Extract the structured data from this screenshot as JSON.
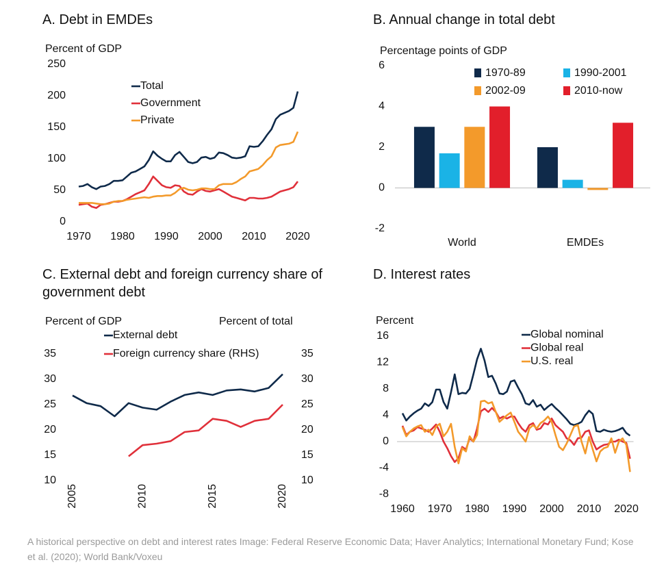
{
  "chart_data": [
    {
      "type": "line",
      "title": "A. Debt in EMDEs",
      "y_label": "Percent of GDP",
      "x": [
        1970,
        1971,
        1972,
        1973,
        1974,
        1975,
        1976,
        1977,
        1978,
        1979,
        1980,
        1981,
        1982,
        1983,
        1984,
        1985,
        1986,
        1987,
        1988,
        1989,
        1990,
        1991,
        1992,
        1993,
        1994,
        1995,
        1996,
        1997,
        1998,
        1999,
        2000,
        2001,
        2002,
        2003,
        2004,
        2005,
        2006,
        2007,
        2008,
        2009,
        2010,
        2011,
        2012,
        2013,
        2014,
        2015,
        2016,
        2017,
        2018,
        2019,
        2020
      ],
      "series": [
        {
          "name": "Total",
          "color": "#0f2a4a",
          "values": [
            56,
            57,
            60,
            55,
            52,
            56,
            57,
            60,
            65,
            65,
            66,
            72,
            78,
            80,
            84,
            88,
            98,
            112,
            105,
            100,
            96,
            96,
            106,
            111,
            103,
            95,
            93,
            95,
            102,
            103,
            100,
            102,
            110,
            109,
            106,
            102,
            101,
            102,
            104,
            120,
            119,
            120,
            128,
            138,
            147,
            163,
            170,
            173,
            176,
            181,
            207
          ]
        },
        {
          "name": "Government",
          "color": "#e0303a",
          "values": [
            27,
            28,
            29,
            24,
            22,
            27,
            28,
            30,
            32,
            32,
            33,
            36,
            40,
            44,
            47,
            50,
            60,
            72,
            65,
            58,
            55,
            54,
            58,
            57,
            48,
            44,
            43,
            48,
            52,
            49,
            48,
            50,
            52,
            48,
            44,
            40,
            38,
            36,
            34,
            38,
            38,
            37,
            37,
            38,
            40,
            44,
            48,
            50,
            52,
            55,
            64
          ]
        },
        {
          "name": "Private",
          "color": "#f39a2b",
          "values": [
            30,
            30,
            30,
            30,
            29,
            28,
            28,
            29,
            32,
            33,
            33,
            35,
            36,
            37,
            38,
            39,
            38,
            40,
            41,
            41,
            42,
            42,
            46,
            52,
            54,
            51,
            50,
            51,
            53,
            53,
            52,
            52,
            58,
            60,
            60,
            60,
            63,
            68,
            72,
            80,
            82,
            84,
            90,
            98,
            104,
            118,
            122,
            123,
            124,
            127,
            143
          ]
        }
      ],
      "xlim": [
        1970,
        2020
      ],
      "xticks": [
        1970,
        1980,
        1990,
        2000,
        2010,
        2020
      ],
      "ylim": [
        0,
        250
      ],
      "yticks": [
        0,
        50,
        100,
        150,
        200,
        250
      ]
    },
    {
      "type": "bar",
      "title": "B. Annual change in total debt",
      "y_label": "Percentage points of GDP",
      "categories": [
        "World",
        "EMDEs"
      ],
      "series": [
        {
          "name": "1970-89",
          "color": "#0f2a4a",
          "values": [
            3,
            2
          ]
        },
        {
          "name": "1990-2001",
          "color": "#1ab3e6",
          "values": [
            1.7,
            0.4
          ]
        },
        {
          "name": "2002-09",
          "color": "#f39a2b",
          "values": [
            3,
            -0.1
          ]
        },
        {
          "name": "2010-now",
          "color": "#e21f2b",
          "values": [
            4,
            3.2
          ]
        }
      ],
      "ylim": [
        -2,
        6
      ],
      "yticks": [
        -2,
        0,
        2,
        4,
        6
      ],
      "zero_line": true
    },
    {
      "type": "line",
      "title": "C. External debt and foreign currency share of government debt",
      "y_label": "Percent of GDP",
      "y2_label": "Percent of total",
      "x": [
        2005,
        2006,
        2007,
        2008,
        2009,
        2010,
        2011,
        2012,
        2013,
        2014,
        2015,
        2016,
        2017,
        2018,
        2019,
        2020
      ],
      "series": [
        {
          "name": "External debt",
          "color": "#0f2a4a",
          "values": [
            26.8,
            25.3,
            24.7,
            22.7,
            25.3,
            24.4,
            24.0,
            25.6,
            26.9,
            27.4,
            26.9,
            27.8,
            28.0,
            27.6,
            28.3,
            31.0
          ]
        },
        {
          "name": "Foreign currency share (RHS)",
          "color": "#e0303a",
          "axis": "y2",
          "values": [
            null,
            null,
            null,
            null,
            14.8,
            17.0,
            17.3,
            17.8,
            19.6,
            19.9,
            22.2,
            21.8,
            20.6,
            21.8,
            22.2,
            25.0
          ]
        }
      ],
      "xlim": [
        2005,
        2020
      ],
      "xticks": [
        2005,
        2010,
        2015,
        2020
      ],
      "xtick_rotation": -90,
      "ylim": [
        10,
        35
      ],
      "yticks": [
        10,
        15,
        20,
        25,
        30,
        35
      ],
      "y2lim": [
        10,
        35
      ],
      "y2ticks": [
        10,
        15,
        20,
        25,
        30,
        35
      ]
    },
    {
      "type": "line",
      "title": "D. Interest rates",
      "y_label": "Percent",
      "x": [
        1960,
        1961,
        1962,
        1963,
        1964,
        1965,
        1966,
        1967,
        1968,
        1969,
        1970,
        1971,
        1972,
        1973,
        1974,
        1975,
        1976,
        1977,
        1978,
        1979,
        1980,
        1981,
        1982,
        1983,
        1984,
        1985,
        1986,
        1987,
        1988,
        1989,
        1990,
        1991,
        1992,
        1993,
        1994,
        1995,
        1996,
        1997,
        1998,
        1999,
        2000,
        2001,
        2002,
        2003,
        2004,
        2005,
        2006,
        2007,
        2008,
        2009,
        2010,
        2011,
        2012,
        2013,
        2014,
        2015,
        2016,
        2017,
        2018,
        2019,
        2020,
        2021
      ],
      "series": [
        {
          "name": "Global nominal",
          "color": "#0f2a4a",
          "values": [
            4.3,
            3.2,
            3.8,
            4.3,
            4.7,
            5.0,
            5.8,
            5.4,
            6.0,
            7.9,
            7.9,
            6.0,
            5.0,
            7.5,
            10.2,
            7.2,
            7.4,
            7.3,
            8.0,
            10.2,
            12.5,
            14.1,
            12.3,
            9.8,
            10.0,
            8.8,
            7.3,
            7.2,
            7.6,
            9.1,
            9.3,
            8.2,
            7.2,
            5.8,
            5.6,
            6.3,
            5.3,
            5.6,
            4.8,
            5.3,
            5.7,
            5.1,
            4.6,
            4.0,
            3.4,
            2.7,
            2.5,
            2.7,
            3.0,
            4.0,
            4.7,
            4.2,
            1.6,
            1.5,
            1.8,
            1.6,
            1.5,
            1.6,
            1.8,
            2.1,
            1.3,
            0.9
          ]
        },
        {
          "name": "Global real",
          "color": "#e0303a",
          "values": [
            2.4,
            1.0,
            1.5,
            1.7,
            2.2,
            2.0,
            1.8,
            1.5,
            2.0,
            2.6,
            1.5,
            0.0,
            -1.0,
            -2.2,
            -3.1,
            -2.5,
            -0.8,
            -1.2,
            0.5,
            0.0,
            2.0,
            4.6,
            5.0,
            4.5,
            5.1,
            4.5,
            3.5,
            3.8,
            3.5,
            3.8,
            3.8,
            2.8,
            2.0,
            1.5,
            2.5,
            2.8,
            1.8,
            2.0,
            2.8,
            2.6,
            3.5,
            2.5,
            2.0,
            1.5,
            0.5,
            0.2,
            -0.5,
            0.5,
            0.6,
            1.5,
            1.7,
            0.0,
            -1.2,
            -0.8,
            -0.5,
            -0.4,
            0.0,
            0.0,
            0.3,
            0.0,
            -0.2,
            -2.6
          ]
        },
        {
          "name": "U.S. real",
          "color": "#f39a2b",
          "values": [
            2.2,
            0.8,
            1.5,
            2.0,
            2.3,
            2.5,
            1.5,
            1.8,
            1.0,
            2.3,
            2.7,
            0.8,
            1.5,
            2.7,
            -0.8,
            -3.3,
            -1.0,
            -1.5,
            0.8,
            0.0,
            1.0,
            6.1,
            6.2,
            5.8,
            6.0,
            4.5,
            3.0,
            3.5,
            4.0,
            4.4,
            3.0,
            1.5,
            0.8,
            0.0,
            2.0,
            2.5,
            2.0,
            2.8,
            3.2,
            3.8,
            3.0,
            1.0,
            -0.8,
            -1.3,
            -0.3,
            1.0,
            2.3,
            2.5,
            0.0,
            -1.8,
            0.7,
            -1.2,
            -3.0,
            -1.5,
            -1.0,
            -0.8,
            0.5,
            -1.7,
            0.0,
            0.5,
            -0.5,
            -4.6
          ]
        }
      ],
      "xlim": [
        1960,
        2021
      ],
      "xticks": [
        1960,
        1970,
        1980,
        1990,
        2000,
        2010,
        2020
      ],
      "ylim": [
        -8,
        16
      ],
      "yticks": [
        -8,
        -4,
        0,
        4,
        8,
        12,
        16
      ],
      "zero_line": true
    }
  ],
  "caption": "A historical perspective on debt and interest rates Image: Federal Reserve Economic Data; Haver Analytics; International Monetary Fund; Kose et al. (2020); World Bank/Voxeu"
}
